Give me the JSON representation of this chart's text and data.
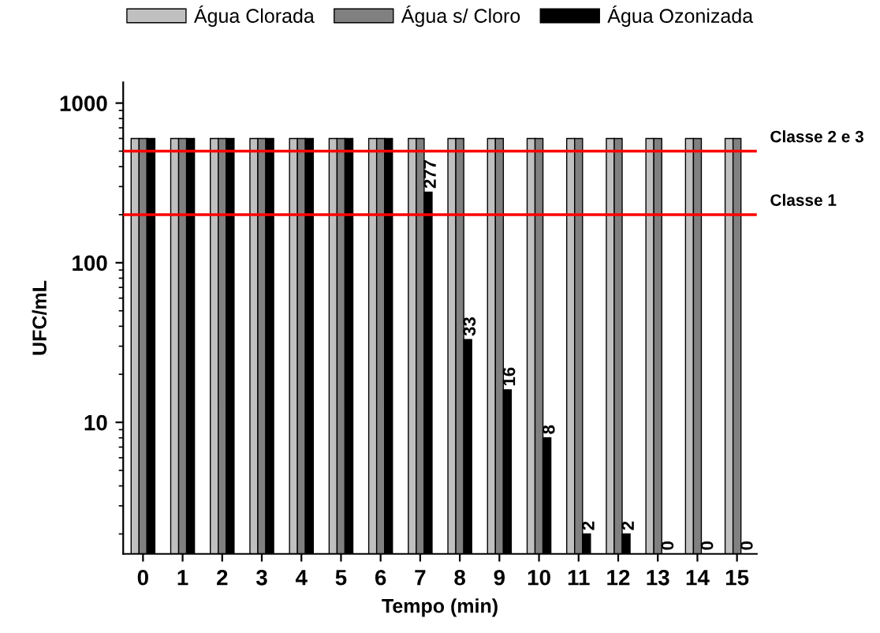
{
  "chart_data": {
    "type": "bar",
    "xlabel": "Tempo (min)",
    "ylabel": "UFC/mL",
    "log": "y",
    "ylim": [
      1.5,
      1350
    ],
    "yticks": [
      10,
      100,
      1000
    ],
    "legend": "top",
    "grid": false,
    "categories": [
      "0",
      "1",
      "2",
      "3",
      "4",
      "5",
      "6",
      "7",
      "8",
      "9",
      "10",
      "11",
      "12",
      "13",
      "14",
      "15"
    ],
    "series": [
      {
        "name": "Água Clorada",
        "color": "#c0c0c0",
        "values": [
          600,
          600,
          600,
          600,
          600,
          600,
          600,
          600,
          600,
          600,
          600,
          600,
          600,
          600,
          600,
          600
        ]
      },
      {
        "name": "Água s/ Cloro",
        "color": "#808080",
        "values": [
          600,
          600,
          600,
          600,
          600,
          600,
          600,
          600,
          600,
          600,
          600,
          600,
          600,
          600,
          600,
          600
        ]
      },
      {
        "name": "Água Ozonizada",
        "color": "#000000",
        "values": [
          600,
          600,
          600,
          600,
          600,
          600,
          600,
          277,
          33,
          16,
          8,
          2,
          2,
          null,
          null,
          null
        ],
        "value_labels": [
          null,
          null,
          null,
          null,
          null,
          null,
          null,
          "277",
          "33",
          "16",
          "8",
          "2",
          "2",
          "0",
          "0",
          "0"
        ]
      }
    ],
    "ref_lines": [
      {
        "axis": "y",
        "value": 500,
        "label": "Classe 2 e 3",
        "color": "#ff0000"
      },
      {
        "axis": "y",
        "value": 200,
        "label": "Classe 1",
        "color": "#ff0000"
      }
    ]
  }
}
